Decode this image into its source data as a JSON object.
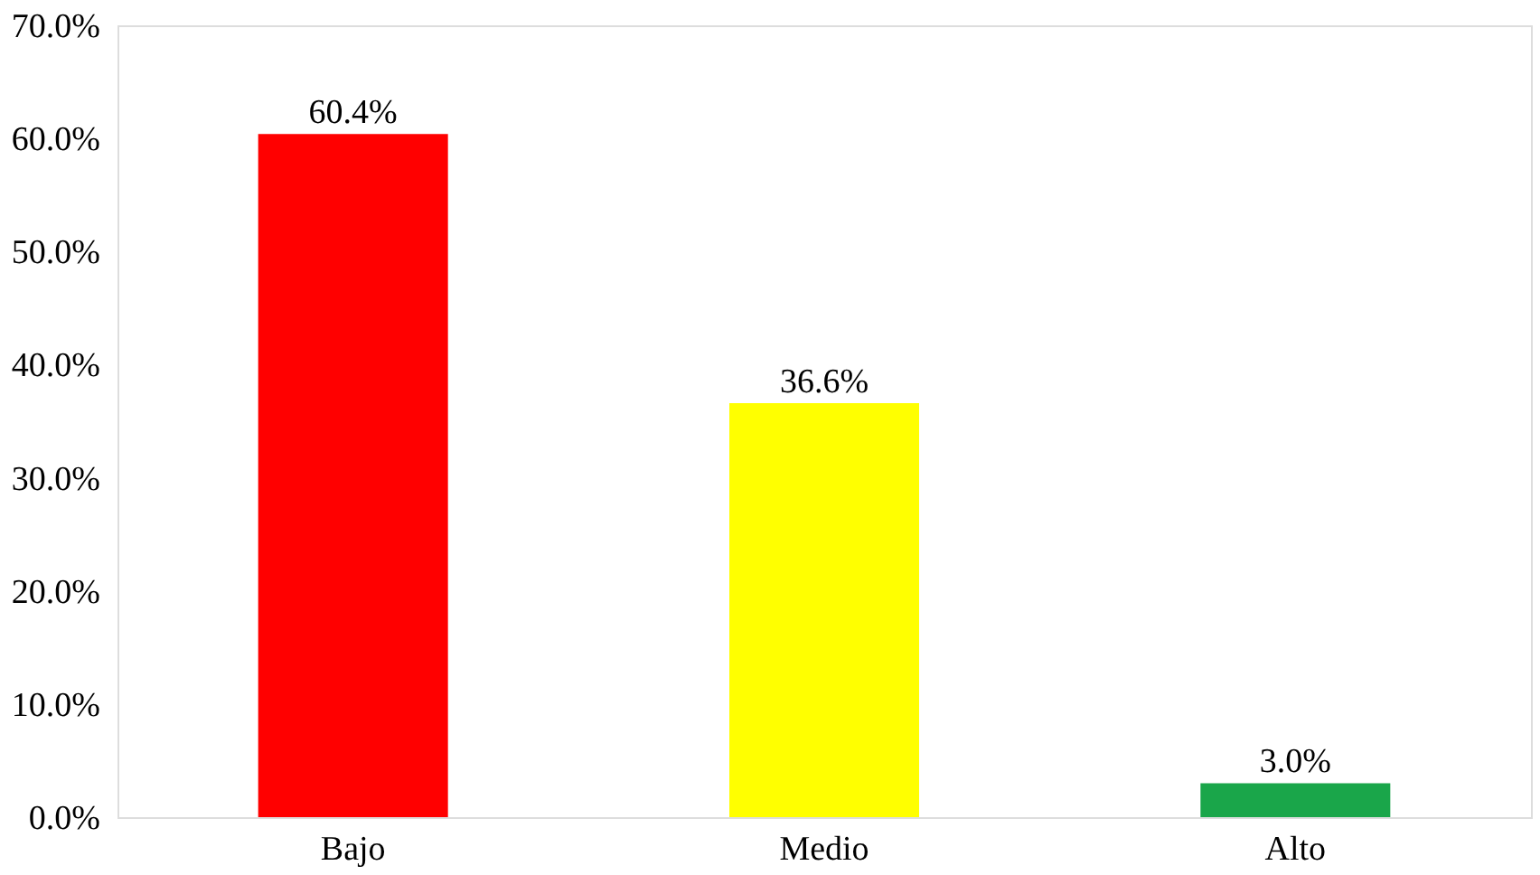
{
  "chart_data": {
    "type": "bar",
    "categories": [
      "Bajo",
      "Medio",
      "Alto"
    ],
    "values": [
      60.4,
      36.6,
      3.0
    ],
    "colors": [
      "#ff0000",
      "#ffff00",
      "#1aa64a"
    ],
    "value_labels": [
      "60.4%",
      "36.6%",
      "3.0%"
    ],
    "ylim": [
      0,
      70
    ],
    "yticks": [
      {
        "value": 0,
        "label": "0.0%"
      },
      {
        "value": 10,
        "label": "10.0%"
      },
      {
        "value": 20,
        "label": "20.0%"
      },
      {
        "value": 30,
        "label": "30.0%"
      },
      {
        "value": 40,
        "label": "40.0%"
      },
      {
        "value": 50,
        "label": "50.0%"
      },
      {
        "value": 60,
        "label": "60.0%"
      },
      {
        "value": 70,
        "label": "70.0%"
      }
    ],
    "grid": false
  }
}
